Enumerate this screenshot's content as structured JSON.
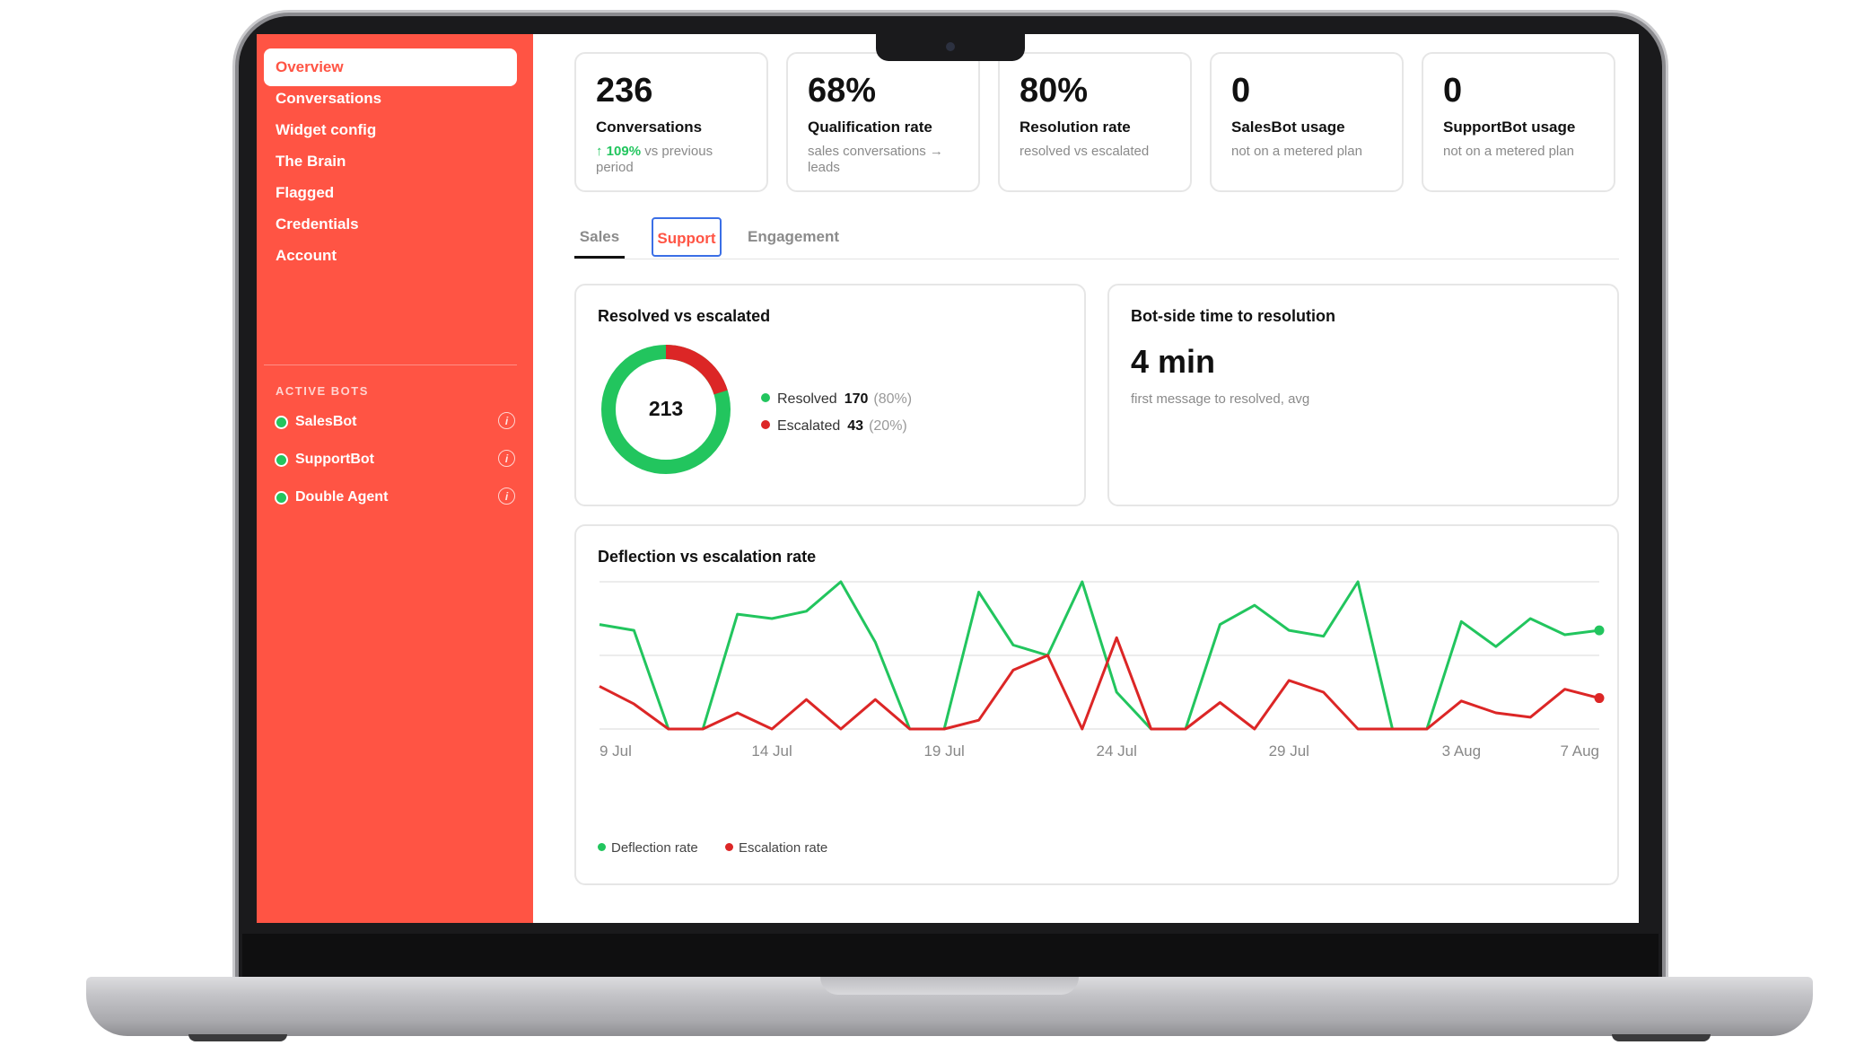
{
  "sidebar": {
    "nav": [
      "Overview",
      "Conversations",
      "Widget config",
      "The Brain",
      "Flagged",
      "Credentials",
      "Account"
    ],
    "active_bots_heading": "ACTIVE BOTS",
    "bots": [
      "SalesBot",
      "SupportBot",
      "Double Agent"
    ],
    "info_glyph": "i"
  },
  "stats": [
    {
      "value": "236",
      "label": "Conversations",
      "change": "↑ 109%",
      "sub": " vs previous period"
    },
    {
      "value": "68%",
      "label": "Qualification rate",
      "sub": "sales conversations → leads"
    },
    {
      "value": "80%",
      "label": "Resolution rate",
      "sub": "resolved vs escalated"
    },
    {
      "value": "0",
      "label": "SalesBot usage",
      "sub": "not on a metered plan"
    },
    {
      "value": "0",
      "label": "SupportBot usage",
      "sub": "not on a metered plan"
    }
  ],
  "tabs": [
    "Sales",
    "Support",
    "Engagement"
  ],
  "resolved_panel": {
    "title": "Resolved vs escalated",
    "total": "213",
    "resolved_label": "Resolved",
    "resolved_count": "170",
    "resolved_pct": "(80%)",
    "escalated_label": "Escalated",
    "escalated_count": "43",
    "escalated_pct": "(20%)"
  },
  "time_panel": {
    "title": "Bot-side time to resolution",
    "value": "4 min",
    "caption": "first message to resolved, avg"
  },
  "colors": {
    "accent": "#ff5444",
    "green": "#22c55e",
    "red": "#dc2626"
  },
  "chart_data": {
    "type": "line",
    "title": "Deflection vs escalation rate",
    "x_ticks": [
      "9 Jul",
      "14 Jul",
      "19 Jul",
      "24 Jul",
      "29 Jul",
      "3 Aug",
      "7 Aug"
    ],
    "x_tick_index": [
      0,
      5,
      10,
      15,
      20,
      25,
      29
    ],
    "ylim": [
      0,
      100
    ],
    "grid": true,
    "legend": "bottom-left",
    "series": [
      {
        "name": "Deflection rate",
        "color": "#22c55e",
        "values": [
          71,
          67,
          0,
          0,
          78,
          75,
          80,
          100,
          59,
          0,
          0,
          93,
          57,
          50,
          100,
          25,
          0,
          0,
          71,
          84,
          67,
          63,
          100,
          0,
          0,
          73,
          56,
          75,
          64,
          67
        ]
      },
      {
        "name": "Escalation rate",
        "color": "#dc2626",
        "values": [
          29,
          17,
          0,
          0,
          11,
          0,
          20,
          0,
          20,
          0,
          0,
          6,
          40,
          50,
          0,
          62,
          0,
          0,
          18,
          0,
          33,
          25,
          0,
          0,
          0,
          19,
          11,
          8,
          27,
          21
        ]
      }
    ]
  }
}
